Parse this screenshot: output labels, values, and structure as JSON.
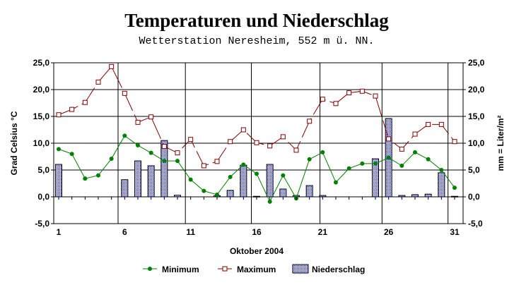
{
  "chart_data": {
    "type": "bar+line",
    "title": "Temperaturen und Niederschlag",
    "subtitle": "Wetterstation Neresheim, 552 m ü. NN.",
    "xlabel": "Oktober 2004",
    "ylabel_left": "Grad Celsius °C",
    "ylabel_right": "mm = Liter/m²",
    "ylim": [
      -5,
      25
    ],
    "yticks": [
      "-5,0",
      "0,0",
      "5,0",
      "10,0",
      "15,0",
      "20,0",
      "25,0"
    ],
    "ytick_values": [
      -5,
      0,
      5,
      10,
      15,
      20,
      25
    ],
    "xticks": [
      "1",
      "6",
      "11",
      "16",
      "21",
      "26",
      "31"
    ],
    "xtick_values": [
      1,
      6,
      11,
      16,
      21,
      26,
      31
    ],
    "vertical_lines_at_day": [
      5.5,
      10.6,
      15.6,
      20.8,
      25.5,
      30.5
    ],
    "grid": true,
    "legend": "bottom",
    "days": [
      1,
      2,
      3,
      4,
      5,
      6,
      7,
      8,
      9,
      10,
      11,
      12,
      13,
      14,
      15,
      16,
      17,
      18,
      19,
      20,
      21,
      22,
      23,
      24,
      25,
      26,
      27,
      28,
      29,
      30,
      31
    ],
    "series": [
      {
        "name": "Minimum",
        "type": "line",
        "color": "#008000",
        "marker": "filled-circle",
        "values": [
          8.9,
          8.0,
          3.4,
          4.0,
          7.1,
          11.4,
          9.6,
          8.2,
          6.7,
          6.7,
          3.2,
          1.1,
          0.4,
          3.7,
          6.0,
          4.3,
          -0.9,
          4.0,
          -0.3,
          7.0,
          8.3,
          2.7,
          5.3,
          6.2,
          6.2,
          7.3,
          5.8,
          8.3,
          7.0,
          5.0,
          1.7
        ]
      },
      {
        "name": "Maximum",
        "type": "line",
        "color": "#800000",
        "marker": "open-square",
        "values": [
          15.3,
          16.3,
          17.6,
          21.4,
          24.3,
          19.3,
          13.9,
          14.9,
          9.4,
          8.2,
          10.7,
          5.8,
          6.6,
          10.3,
          12.5,
          10.1,
          9.5,
          11.2,
          8.7,
          14.1,
          18.2,
          17.4,
          19.4,
          19.7,
          18.8,
          10.8,
          8.9,
          11.7,
          13.5,
          13.5,
          10.3
        ]
      },
      {
        "name": "Niederschlag",
        "type": "bar",
        "color": "#0000ff",
        "axis": "right",
        "values": [
          6.05,
          0,
          0,
          0,
          0,
          3.2,
          6.7,
          5.8,
          10.5,
          0.3,
          0,
          0,
          0.2,
          1.2,
          5.9,
          0.1,
          6.05,
          1.45,
          0.25,
          2.1,
          0.25,
          0,
          0,
          0,
          7.1,
          14.6,
          0.25,
          0.4,
          0.5,
          4.5,
          0.1
        ]
      }
    ]
  }
}
